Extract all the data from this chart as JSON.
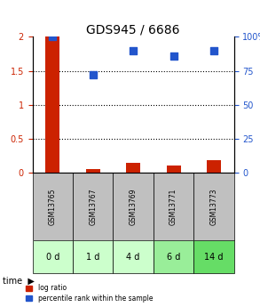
{
  "title": "GDS945 / 6686",
  "samples": [
    "GSM13765",
    "GSM13767",
    "GSM13769",
    "GSM13771",
    "GSM13773"
  ],
  "time_labels": [
    "0 d",
    "1 d",
    "4 d",
    "6 d",
    "14 d"
  ],
  "log_ratio": [
    2.0,
    0.05,
    0.15,
    0.1,
    0.18
  ],
  "percentile_rank": [
    100,
    72,
    90,
    86,
    90
  ],
  "bar_color": "#cc2200",
  "dot_color": "#2255cc",
  "left_ylim": [
    0,
    2.0
  ],
  "right_ylim": [
    0,
    100
  ],
  "left_yticks": [
    0,
    0.5,
    1.0,
    1.5,
    2.0
  ],
  "right_yticks": [
    0,
    25,
    50,
    75,
    100
  ],
  "left_yticklabels": [
    "0",
    "0.5",
    "1",
    "1.5",
    "2"
  ],
  "right_yticklabels": [
    "0",
    "25",
    "50",
    "75",
    "100%"
  ],
  "dotted_lines": [
    0.5,
    1.0,
    1.5
  ],
  "sample_bg_color": "#c0c0c0",
  "time_bg_colors": [
    "#ccffcc",
    "#ccffcc",
    "#ccffcc",
    "#99ee99",
    "#66dd66"
  ],
  "time_label": "time",
  "legend_bar_label": "log ratio",
  "legend_dot_label": "percentile rank within the sample",
  "bar_width": 0.35
}
